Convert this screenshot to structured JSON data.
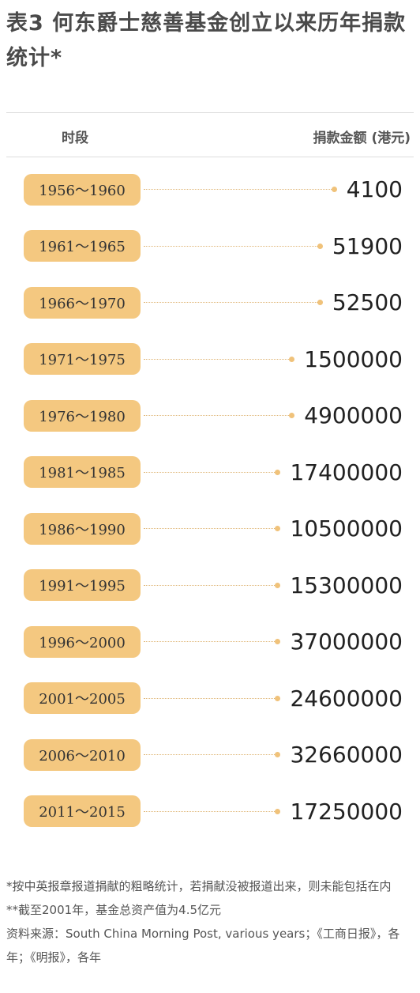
{
  "header": {
    "title": "表3 何东爵士慈善基金创立以来历年捐款统计*"
  },
  "table": {
    "columns": [
      "时段",
      "捐款金额 (港元)"
    ],
    "rows": [
      [
        "1956～1960",
        4100
      ],
      [
        "1961～1965",
        51900
      ],
      [
        "1966～1970",
        52500
      ],
      [
        "1971～1975",
        1500000
      ],
      [
        "1976～1980",
        4900000
      ],
      [
        "1981～1985",
        17400000
      ],
      [
        "1986～1990",
        10500000
      ],
      [
        "1991～1995",
        15300000
      ],
      [
        "1996～2000",
        37000000
      ],
      [
        "2001～2005",
        24600000
      ],
      [
        "2006～2010",
        32660000
      ],
      [
        "2011～2015",
        17250000
      ]
    ]
  },
  "notes": [
    "*按中英报章报道捐献的粗略统计，若捐献没被报道出来，则未能包括在内",
    "**截至2001年，基金总资产值为4.5亿元",
    "资料来源：South China Morning Post, various years；《工商日报》，各年；《明报》，各年"
  ]
}
